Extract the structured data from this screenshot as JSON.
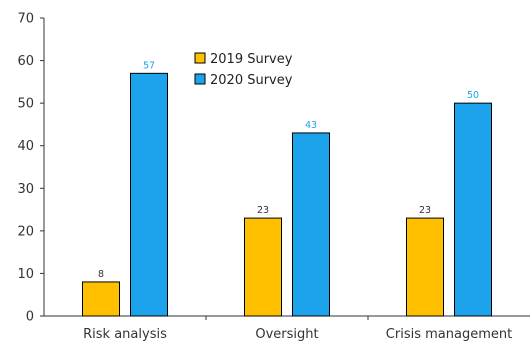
{
  "chart_data": {
    "type": "bar",
    "title": "",
    "xlabel": "",
    "ylabel": "",
    "categories": [
      "Risk analysis",
      "Oversight",
      "Crisis management"
    ],
    "series": [
      {
        "name": "2019 Survey",
        "values": [
          8,
          23,
          23
        ],
        "color": "#ffc000",
        "label_color": "#333333"
      },
      {
        "name": "2020 Survey",
        "values": [
          57,
          43,
          50
        ],
        "color": "#1ca3ec",
        "label_color": "#1ca3ec"
      }
    ],
    "ylim": [
      0,
      70
    ],
    "yticks": [
      0,
      10,
      20,
      30,
      40,
      50,
      60,
      70
    ],
    "grid": false,
    "legend": "top-center",
    "bar_stroke": "#000000"
  }
}
